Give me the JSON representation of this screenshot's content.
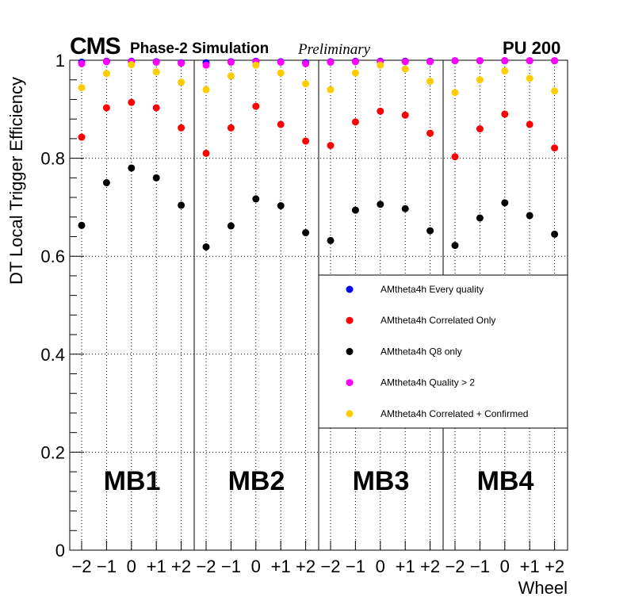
{
  "header": {
    "experiment": "CMS",
    "subtitle": "Phase-2 Simulation",
    "status": "Preliminary",
    "pileup": "PU 200"
  },
  "chart_data": {
    "type": "scatter",
    "title": "",
    "xlabel": "Wheel",
    "ylabel": "DT Local Trigger Efficiency",
    "ylim": [
      0,
      1.0
    ],
    "yticks": [
      0,
      0.2,
      0.4,
      0.6,
      0.8,
      1
    ],
    "ytick_labels": [
      "0",
      "0.2",
      "0.4",
      "0.6",
      "0.8",
      "1"
    ],
    "grid": true,
    "legend_position": "center-right",
    "stations": [
      "MB1",
      "MB2",
      "MB3",
      "MB4"
    ],
    "wheels": [
      "−2",
      "−1",
      "0",
      "+1",
      "+2"
    ],
    "categories": [
      "MB1 -2",
      "MB1 -1",
      "MB1 0",
      "MB1 +1",
      "MB1 +2",
      "MB2 -2",
      "MB2 -1",
      "MB2 0",
      "MB2 +1",
      "MB2 +2",
      "MB3 -2",
      "MB3 -1",
      "MB3 0",
      "MB3 +1",
      "MB3 +2",
      "MB4 -2",
      "MB4 -1",
      "MB4 0",
      "MB4 +1",
      "MB4 +2"
    ],
    "series": [
      {
        "name": "AMtheta4h Every quality",
        "color": "#0000ff",
        "values": [
          0.996,
          0.998,
          0.998,
          0.997,
          0.995,
          0.995,
          0.997,
          0.998,
          0.997,
          0.995,
          0.997,
          0.998,
          0.998,
          0.998,
          0.998,
          0.999,
          0.999,
          0.999,
          0.999,
          0.999
        ]
      },
      {
        "name": "AMtheta4h Correlated Only",
        "color": "#ff0000",
        "values": [
          0.843,
          0.903,
          0.914,
          0.903,
          0.862,
          0.81,
          0.862,
          0.906,
          0.869,
          0.835,
          0.826,
          0.874,
          0.896,
          0.888,
          0.851,
          0.803,
          0.86,
          0.89,
          0.869,
          0.821
        ]
      },
      {
        "name": "AMtheta4h Q8 only",
        "color": "#000000",
        "values": [
          0.663,
          0.75,
          0.78,
          0.76,
          0.704,
          0.619,
          0.662,
          0.717,
          0.703,
          0.648,
          0.632,
          0.694,
          0.706,
          0.697,
          0.652,
          0.622,
          0.678,
          0.709,
          0.683,
          0.645
        ]
      },
      {
        "name": "AMtheta4h Quality > 2",
        "color": "#ff00ff",
        "values": [
          0.993,
          0.997,
          0.997,
          0.996,
          0.994,
          0.99,
          0.996,
          0.997,
          0.996,
          0.993,
          0.996,
          0.997,
          0.997,
          0.997,
          0.997,
          0.999,
          0.999,
          0.999,
          0.999,
          0.999
        ]
      },
      {
        "name": "AMtheta4h Correlated + Confirmed",
        "color": "#ffcc00",
        "values": [
          0.944,
          0.973,
          0.991,
          0.976,
          0.955,
          0.94,
          0.968,
          0.99,
          0.974,
          0.952,
          0.94,
          0.974,
          0.99,
          0.982,
          0.957,
          0.934,
          0.96,
          0.978,
          0.963,
          0.937
        ]
      }
    ]
  }
}
